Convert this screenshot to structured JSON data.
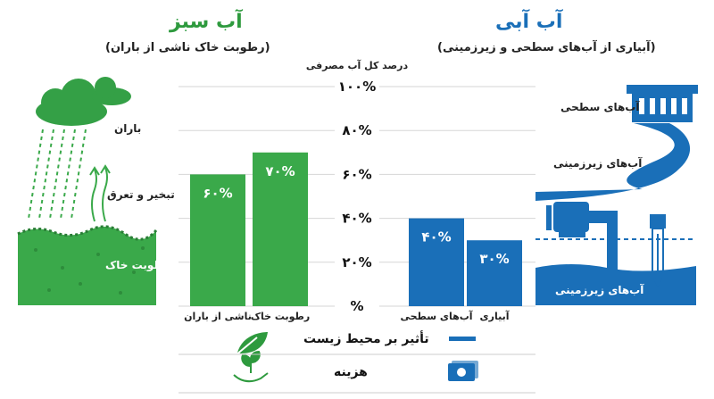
{
  "green_water": {
    "title": "آب سبز",
    "subtitle": "(رطوبت خاک ناشی از باران)",
    "rain_label": "باران",
    "evap_label": "تبخیر و تعرق",
    "soil_label": "رطوبت خاک",
    "color": "#3aa94a"
  },
  "blue_water": {
    "title": "آب آبی",
    "subtitle": "(آبیاری از آب‌های سطحی و زیرزمینی)",
    "surface_label": "آب‌های سطحی",
    "ground_label": "آب‌های زیرزمینی",
    "ground_label_bottom": "آب‌های زیرزمینی",
    "color": "#1a6fb8"
  },
  "axis_title": "درصد کل آب مصرفی",
  "legend": {
    "impact": "تأثیر بر محیط زیست",
    "cost": "هزینه"
  },
  "chart_data": {
    "type": "bar",
    "ylabel": "درصد کل آب مصرفی",
    "ylim": [
      0,
      100
    ],
    "yticks": [
      "۱۰۰%",
      "۸۰%",
      "۶۰%",
      "۴۰%",
      "۲۰%",
      "%"
    ],
    "groups": [
      {
        "name": "آب سبز",
        "color": "#3aa94a",
        "categories": [
          "ناشی از باران",
          "رطوبت خاک"
        ],
        "values": [
          60,
          70
        ],
        "value_labels": [
          "۶۰%",
          "۷۰%"
        ]
      },
      {
        "name": "آب آبی",
        "color": "#1a6fb8",
        "categories": [
          "آب‌های سطحی",
          "آبیاری"
        ],
        "values": [
          40,
          30
        ],
        "value_labels": [
          "۴۰%",
          "۳۰%"
        ]
      }
    ]
  }
}
